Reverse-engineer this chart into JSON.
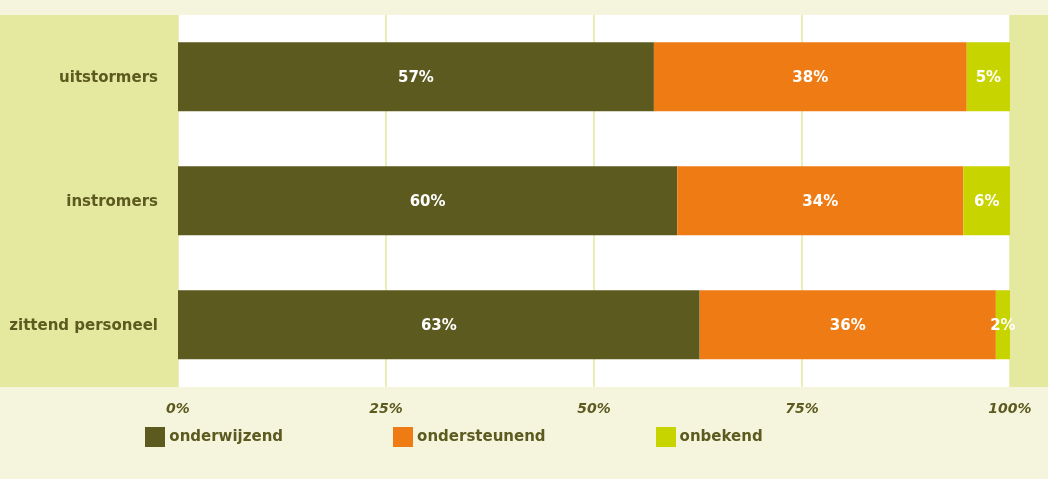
{
  "chart_data": {
    "type": "bar",
    "orientation": "horizontal",
    "stacked": true,
    "categories": [
      "uitstormers",
      "instromers",
      "zittend personeel"
    ],
    "series": [
      {
        "name": "onderwijzend",
        "color": "#5c5a1f",
        "values": [
          57.2,
          60,
          62.7
        ],
        "value_labels": [
          "57%",
          "60%",
          "63%"
        ]
      },
      {
        "name": "ondersteunend",
        "color": "#ef7b14",
        "values": [
          37.6,
          34.4,
          35.6
        ],
        "value_labels": [
          "38%",
          "34%",
          "36%"
        ]
      },
      {
        "name": "onbekend",
        "color": "#c8d400",
        "values": [
          5.2,
          5.6,
          1.7
        ],
        "value_labels": [
          "5%",
          "6%",
          "2%"
        ]
      }
    ],
    "xlim": [
      0,
      100
    ],
    "xticks": [
      {
        "value": 0,
        "label": "0%"
      },
      {
        "value": 25,
        "label": "25%"
      },
      {
        "value": 50,
        "label": "50%"
      },
      {
        "value": 75,
        "label": "75%"
      },
      {
        "value": 100,
        "label": "100%"
      }
    ],
    "grid": "x",
    "legend": "bottom"
  }
}
